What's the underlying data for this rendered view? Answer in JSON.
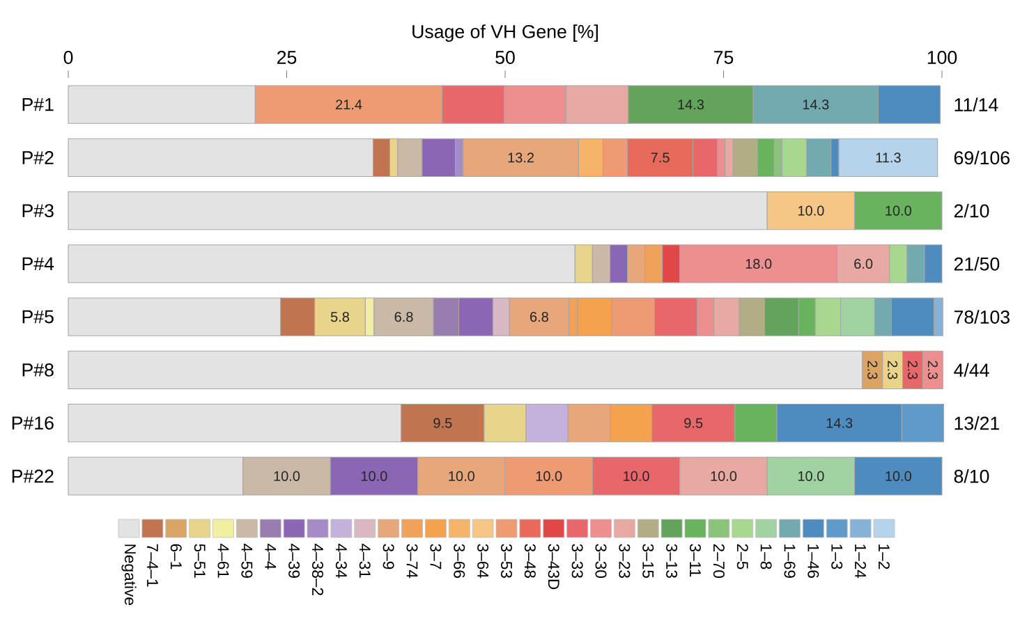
{
  "chart_data": {
    "type": "bar",
    "orientation": "horizontal",
    "stacked": true,
    "xlabel": "Usage of VH Gene [%]",
    "categories": [
      "P#1",
      "P#2",
      "P#3",
      "P#4",
      "P#5",
      "P#8",
      "P#16",
      "P#22"
    ],
    "xlim": [
      0,
      100
    ],
    "xticks": [
      0,
      25,
      50,
      75,
      100
    ],
    "legend": "bottom",
    "annotations": [
      "11/14",
      "69/106",
      "2/10",
      "21/50",
      "78/103",
      "4/44",
      "13/21",
      "8/10"
    ],
    "series": [
      {
        "name": "Negative",
        "color": "#e3e3e3",
        "values": [
          21.4,
          34.9,
          80.0,
          58.0,
          24.3,
          90.9,
          38.1,
          20.0
        ]
      },
      {
        "name": "7–4–1",
        "color": "#c0744f",
        "values": [
          null,
          1.9,
          null,
          null,
          3.9,
          null,
          9.5,
          null
        ],
        "value_labels": [
          null,
          null,
          null,
          null,
          null,
          null,
          "9.5",
          null
        ]
      },
      {
        "name": "6–1",
        "color": "#d9a464",
        "values": [
          null,
          null,
          null,
          null,
          null,
          2.3,
          null,
          null
        ],
        "value_labels": [
          null,
          null,
          null,
          null,
          null,
          "2.3",
          null,
          null
        ]
      },
      {
        "name": "5–51",
        "color": "#e8d48a",
        "values": [
          null,
          0.9,
          null,
          2.0,
          5.8,
          2.3,
          4.8,
          null
        ],
        "value_labels": [
          null,
          null,
          null,
          null,
          "5.8",
          "2.3",
          null,
          null
        ]
      },
      {
        "name": "4–61",
        "color": "#f2f0a0",
        "values": [
          null,
          null,
          null,
          null,
          1.0,
          null,
          null,
          null
        ]
      },
      {
        "name": "4–59",
        "color": "#c9b9a6",
        "values": [
          null,
          2.8,
          null,
          2.0,
          6.8,
          null,
          null,
          10.0
        ],
        "value_labels": [
          null,
          null,
          null,
          null,
          "6.8",
          null,
          null,
          "10.0"
        ]
      },
      {
        "name": "4–4",
        "color": "#9a7db0",
        "values": [
          null,
          null,
          null,
          null,
          2.9,
          null,
          null,
          null
        ]
      },
      {
        "name": "4–39",
        "color": "#8a66b5",
        "values": [
          null,
          3.8,
          null,
          2.0,
          3.9,
          null,
          null,
          10.0
        ],
        "value_labels": [
          null,
          null,
          null,
          null,
          null,
          null,
          null,
          "10.0"
        ]
      },
      {
        "name": "4–38–2",
        "color": "#a68cc7",
        "values": [
          null,
          0.9,
          null,
          null,
          null,
          null,
          null,
          null
        ]
      },
      {
        "name": "4–34",
        "color": "#c4b1dc",
        "values": [
          null,
          null,
          null,
          null,
          null,
          null,
          4.8,
          null
        ]
      },
      {
        "name": "4–31",
        "color": "#d9b8c4",
        "values": [
          null,
          null,
          null,
          null,
          1.9,
          null,
          null,
          null
        ]
      },
      {
        "name": "3–9",
        "color": "#e8a77a",
        "values": [
          null,
          13.2,
          null,
          2.0,
          6.8,
          null,
          4.8,
          10.0
        ],
        "value_labels": [
          null,
          "13.2",
          null,
          null,
          "6.8",
          null,
          null,
          "10.0"
        ]
      },
      {
        "name": "3–74",
        "color": "#f0a25a",
        "values": [
          null,
          null,
          null,
          2.0,
          1.0,
          null,
          null,
          null
        ]
      },
      {
        "name": "3–7",
        "color": "#f4a24e",
        "values": [
          null,
          null,
          null,
          null,
          3.9,
          null,
          4.8,
          null
        ]
      },
      {
        "name": "3–66",
        "color": "#f6b46a",
        "values": [
          null,
          2.8,
          null,
          null,
          null,
          null,
          null,
          null
        ]
      },
      {
        "name": "3–64",
        "color": "#f5c686",
        "values": [
          null,
          null,
          10.0,
          null,
          null,
          null,
          null,
          null
        ],
        "value_labels": [
          null,
          null,
          "10.0",
          null,
          null,
          null,
          null,
          null
        ]
      },
      {
        "name": "3–53",
        "color": "#ee9a72",
        "values": [
          21.4,
          2.8,
          null,
          null,
          4.9,
          null,
          null,
          10.0
        ],
        "value_labels": [
          "21.4",
          null,
          null,
          null,
          null,
          null,
          null,
          "10.0"
        ]
      },
      {
        "name": "3–48",
        "color": "#e86a5a",
        "values": [
          null,
          7.5,
          null,
          null,
          null,
          null,
          null,
          null
        ],
        "value_labels": [
          null,
          "7.5",
          null,
          null,
          null,
          null,
          null,
          null
        ]
      },
      {
        "name": "3–43D",
        "color": "#e04848",
        "values": [
          null,
          null,
          null,
          2.0,
          null,
          null,
          null,
          null
        ]
      },
      {
        "name": "3–33",
        "color": "#e8676b",
        "values": [
          7.1,
          2.8,
          null,
          null,
          4.9,
          2.3,
          9.5,
          10.0
        ],
        "value_labels": [
          null,
          null,
          null,
          null,
          null,
          "2.3",
          "9.5",
          "10.0"
        ]
      },
      {
        "name": "3–30",
        "color": "#ed8e8f",
        "values": [
          7.1,
          0.9,
          null,
          18.0,
          1.9,
          2.3,
          null,
          null
        ],
        "value_labels": [
          null,
          null,
          null,
          "18.0",
          null,
          "2.3",
          null,
          null
        ]
      },
      {
        "name": "3–23",
        "color": "#e9a9a3",
        "values": [
          7.1,
          0.9,
          null,
          6.0,
          2.9,
          null,
          null,
          10.0
        ],
        "value_labels": [
          null,
          null,
          null,
          "6.0",
          null,
          null,
          null,
          "10.0"
        ]
      },
      {
        "name": "3–15",
        "color": "#b2ad85",
        "values": [
          null,
          2.8,
          null,
          null,
          2.9,
          null,
          null,
          null
        ]
      },
      {
        "name": "3–13",
        "color": "#63a35c",
        "values": [
          14.3,
          null,
          null,
          null,
          3.9,
          null,
          null,
          null
        ],
        "value_labels": [
          "14.3",
          null,
          null,
          null,
          null,
          null,
          null,
          null
        ]
      },
      {
        "name": "3–11",
        "color": "#6ab35e",
        "values": [
          null,
          1.9,
          10.0,
          null,
          1.9,
          null,
          4.8,
          null
        ],
        "value_labels": [
          null,
          null,
          "10.0",
          null,
          null,
          null,
          null,
          null
        ]
      },
      {
        "name": "2–70",
        "color": "#8ac47a",
        "values": [
          null,
          0.9,
          null,
          null,
          null,
          null,
          null,
          null
        ]
      },
      {
        "name": "2–5",
        "color": "#a8d88f",
        "values": [
          null,
          2.8,
          null,
          2.0,
          2.9,
          null,
          null,
          null
        ]
      },
      {
        "name": "1–8",
        "color": "#a0d2a2",
        "values": [
          null,
          null,
          null,
          null,
          3.9,
          null,
          null,
          10.0
        ],
        "value_labels": [
          null,
          null,
          null,
          null,
          null,
          null,
          null,
          "10.0"
        ]
      },
      {
        "name": "1–69",
        "color": "#72aab0",
        "values": [
          14.3,
          2.8,
          null,
          2.0,
          1.9,
          null,
          null,
          null
        ],
        "value_labels": [
          "14.3",
          null,
          null,
          null,
          null,
          null,
          null,
          null
        ]
      },
      {
        "name": "1–46",
        "color": "#4e8cc0",
        "values": [
          7.1,
          0.9,
          null,
          2.0,
          4.9,
          null,
          14.3,
          10.0
        ],
        "value_labels": [
          null,
          null,
          null,
          null,
          null,
          null,
          "14.3",
          "10.0"
        ]
      },
      {
        "name": "1–3",
        "color": "#5f9acb",
        "values": [
          null,
          null,
          null,
          null,
          null,
          null,
          4.8,
          null
        ]
      },
      {
        "name": "1–24",
        "color": "#86b2d8",
        "values": [
          null,
          null,
          null,
          null,
          1.0,
          null,
          null,
          null
        ]
      },
      {
        "name": "1–2",
        "color": "#b5d3ea",
        "values": [
          null,
          11.3,
          null,
          null,
          null,
          null,
          null,
          null
        ],
        "value_labels": [
          null,
          "11.3",
          null,
          null,
          null,
          null,
          null,
          null
        ]
      }
    ]
  }
}
